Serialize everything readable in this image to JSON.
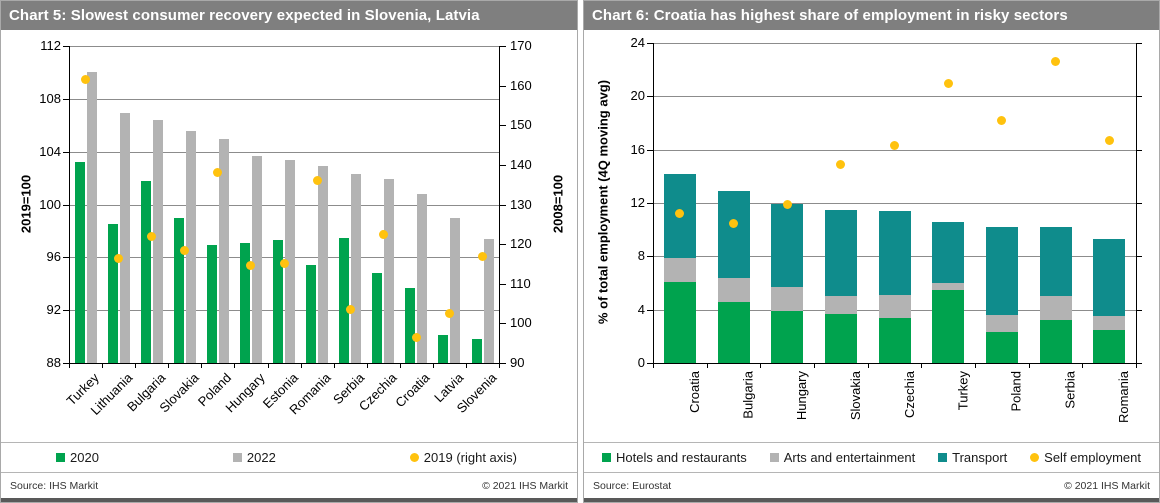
{
  "chart_data": [
    {
      "id": "chart5",
      "type": "bar",
      "title": "Chart 5: Slowest consumer recovery expected in Slovenia, Latvia",
      "categories": [
        "Turkey",
        "Lithuania",
        "Bulgaria",
        "Slovakia",
        "Poland",
        "Hungary",
        "Estonia",
        "Romania",
        "Serbia",
        "Czechia",
        "Croatia",
        "Latvia",
        "Slovenia"
      ],
      "series": [
        {
          "name": "2020",
          "type": "bar",
          "axis": "left",
          "color": "#00A34E",
          "values": [
            103.2,
            98.5,
            101.8,
            99.0,
            96.9,
            97.1,
            97.3,
            95.4,
            97.5,
            94.8,
            93.7,
            90.1,
            89.8
          ]
        },
        {
          "name": "2022",
          "type": "bar",
          "axis": "left",
          "color": "#B3B3B3",
          "values": [
            110.0,
            106.9,
            106.4,
            105.6,
            105.0,
            103.7,
            103.4,
            102.9,
            102.3,
            101.9,
            100.8,
            99.0,
            97.4
          ]
        },
        {
          "name": "2019 (right axis)",
          "type": "point",
          "axis": "right",
          "color": "#FFC20E",
          "values": [
            161.5,
            116.5,
            122.0,
            118.5,
            138.0,
            114.5,
            115.0,
            136.0,
            103.5,
            122.5,
            96.5,
            102.5,
            117.0
          ]
        }
      ],
      "left_axis": {
        "label": "2019=100",
        "min": 88,
        "max": 112,
        "step": 4
      },
      "right_axis": {
        "label": "2008=100",
        "min": 90,
        "max": 170,
        "step": 10
      },
      "grid": true,
      "legend_position": "bottom",
      "source": "Source: IHS Markit",
      "copyright": "© 2021 IHS Markit"
    },
    {
      "id": "chart6",
      "type": "stacked-bar",
      "title": "Chart 6: Croatia has highest share of employment in risky sectors",
      "categories": [
        "Croatia",
        "Bulgaria",
        "Hungary",
        "Slovakia",
        "Czechia",
        "Turkey",
        "Poland",
        "Serbia",
        "Romania"
      ],
      "series": [
        {
          "name": "Hotels and restaurants",
          "type": "bar",
          "axis": "left",
          "color": "#00A34E",
          "values": [
            6.1,
            4.6,
            3.9,
            3.7,
            3.4,
            5.5,
            2.3,
            3.2,
            2.5
          ]
        },
        {
          "name": "Arts and entertainment",
          "type": "bar",
          "axis": "left",
          "color": "#B3B3B3",
          "values": [
            1.8,
            1.8,
            1.8,
            1.3,
            1.7,
            0.5,
            1.3,
            1.8,
            1.0
          ]
        },
        {
          "name": "Transport",
          "type": "bar",
          "axis": "left",
          "color": "#0F8C8C",
          "values": [
            6.3,
            6.5,
            6.2,
            6.5,
            6.3,
            4.6,
            6.6,
            5.2,
            5.8
          ]
        },
        {
          "name": "Self employment",
          "type": "point",
          "axis": "left",
          "color": "#FFC20E",
          "values": [
            11.2,
            10.5,
            11.9,
            14.9,
            16.3,
            21.0,
            18.2,
            22.6,
            16.7
          ]
        }
      ],
      "left_axis": {
        "label": "% of total employment (4Q moving avg)",
        "min": 0,
        "max": 24,
        "step": 4
      },
      "grid": true,
      "legend_position": "bottom",
      "source": "Source: Eurostat",
      "copyright": "© 2021 IHS Markit"
    }
  ]
}
